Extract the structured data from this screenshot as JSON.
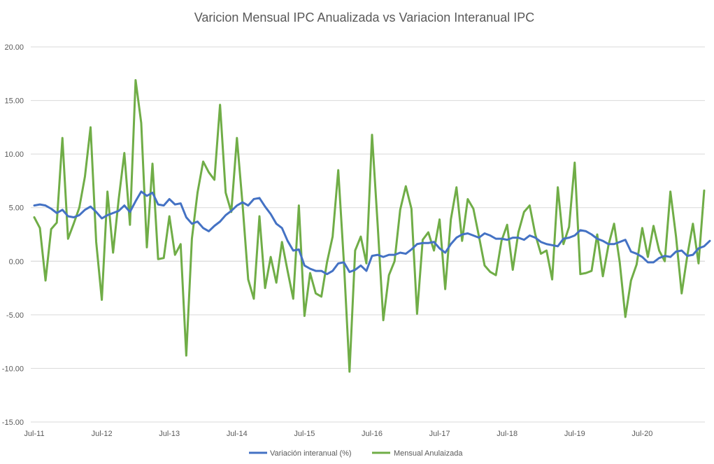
{
  "chart_data": {
    "type": "line",
    "title": "Varicion Mensual IPC Anualizada vs Variacion Interanual IPC",
    "xlabel": "",
    "ylabel": "",
    "ylim": [
      -15,
      20
    ],
    "yticks": [
      "-15.00",
      "-10.00",
      "-5.00",
      "0.00",
      "5.00",
      "10.00",
      "15.00",
      "20.00"
    ],
    "grid": true,
    "legend_position": "bottom",
    "x_start": "2011-07",
    "x_tick_labels": [
      {
        "label": "Jul-11",
        "month": 0
      },
      {
        "label": "Jul-12",
        "month": 12
      },
      {
        "label": "Jul-13",
        "month": 24
      },
      {
        "label": "Jul-14",
        "month": 36
      },
      {
        "label": "Jul-15",
        "month": 48
      },
      {
        "label": "Jul-16",
        "month": 60
      },
      {
        "label": "Jul-17",
        "month": 72
      },
      {
        "label": "Jul-18",
        "month": 84
      },
      {
        "label": "Jul-19",
        "month": 96
      },
      {
        "label": "Jul-20",
        "month": 108
      }
    ],
    "series": [
      {
        "name": "Variación interanual (%)",
        "color": "#4472C4",
        "values": [
          5.2,
          5.3,
          5.2,
          4.9,
          4.5,
          4.8,
          4.2,
          4.1,
          4.3,
          4.8,
          5.1,
          4.6,
          4.0,
          4.3,
          4.5,
          4.7,
          5.2,
          4.6,
          5.6,
          6.5,
          6.1,
          6.4,
          5.3,
          5.2,
          5.8,
          5.3,
          5.4,
          4.1,
          3.5,
          3.7,
          3.1,
          2.8,
          3.3,
          3.7,
          4.3,
          4.7,
          5.2,
          5.5,
          5.2,
          5.8,
          5.9,
          5.1,
          4.4,
          3.5,
          3.1,
          1.9,
          1.0,
          1.1,
          -0.4,
          -0.7,
          -0.9,
          -0.9,
          -1.2,
          -0.9,
          -0.2,
          -0.1,
          -1.0,
          -0.8,
          -0.4,
          -0.9,
          0.5,
          0.6,
          0.4,
          0.6,
          0.6,
          0.8,
          0.7,
          1.1,
          1.6,
          1.7,
          1.7,
          1.8,
          1.2,
          0.8,
          1.6,
          2.2,
          2.5,
          2.6,
          2.4,
          2.2,
          2.6,
          2.4,
          2.1,
          2.1,
          2.0,
          2.2,
          2.2,
          2.0,
          2.4,
          2.2,
          1.8,
          1.6,
          1.5,
          1.4,
          2.1,
          2.2,
          2.4,
          2.9,
          2.8,
          2.5,
          2.1,
          1.9,
          1.6,
          1.6,
          1.8,
          2.0,
          0.9,
          0.7,
          0.4,
          -0.1,
          -0.1,
          0.3,
          0.5,
          0.4,
          0.9,
          1.0,
          0.5,
          0.6,
          1.2,
          1.4,
          1.9
        ]
      },
      {
        "name": "Mensual Anulaizada",
        "color": "#70AD47",
        "values": [
          4.1,
          3.1,
          -1.8,
          3.0,
          3.6,
          11.5,
          2.1,
          3.5,
          5.0,
          7.9,
          12.5,
          1.8,
          -3.6,
          6.5,
          0.8,
          5.8,
          10.1,
          3.4,
          16.9,
          12.9,
          1.3,
          9.1,
          0.2,
          0.3,
          4.2,
          0.6,
          1.6,
          -8.8,
          2.1,
          6.4,
          9.3,
          8.3,
          7.6,
          14.6,
          6.4,
          4.6,
          11.5,
          5.3,
          -1.7,
          -3.5,
          4.2,
          -2.5,
          0.4,
          -2.0,
          1.8,
          -0.9,
          -3.5,
          5.2,
          -5.1,
          -1.1,
          -3.0,
          -3.3,
          -0.1,
          2.3,
          8.5,
          -0.1,
          -10.3,
          1.0,
          2.3,
          -0.2,
          11.8,
          3.4,
          -5.5,
          -1.3,
          0.0,
          4.8,
          7.0,
          4.9,
          -4.9,
          2.0,
          2.7,
          1.0,
          3.9,
          -2.6,
          3.9,
          6.9,
          1.9,
          5.8,
          4.9,
          2.3,
          -0.4,
          -1.0,
          -1.3,
          1.9,
          3.4,
          -0.8,
          2.7,
          4.6,
          5.2,
          2.5,
          0.7,
          1.0,
          -1.7,
          6.9,
          1.6,
          3.2,
          9.2,
          -1.2,
          -1.1,
          -0.9,
          2.5,
          -1.4,
          1.5,
          3.5,
          -0.1,
          -5.2,
          -1.8,
          -0.3,
          3.1,
          0.4,
          3.3,
          1.0,
          0.0,
          6.5,
          2.3,
          -3.0,
          0.5,
          3.5,
          -0.2,
          6.6
        ]
      }
    ]
  }
}
